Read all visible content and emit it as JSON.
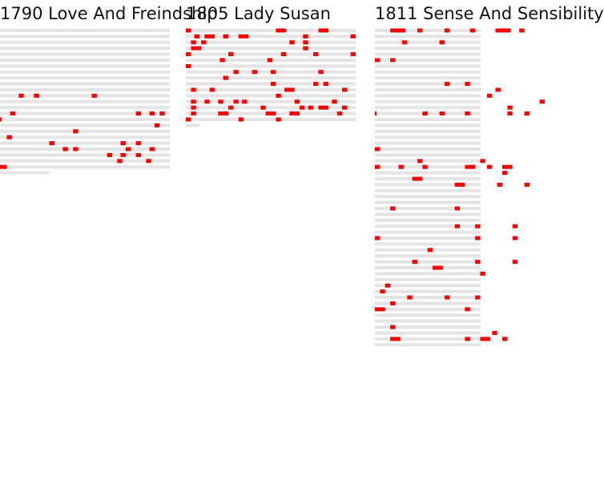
{
  "colors": {
    "line": "#e4e4e4",
    "mark": "#ff0000",
    "text": "#111111"
  },
  "chart_data": [
    {
      "type": "heatmap",
      "title": "1790 Love And Freindship",
      "rows": [
        {
          "len": 1.0,
          "marks": []
        },
        {
          "len": 1.0,
          "marks": []
        },
        {
          "len": 1.0,
          "marks": []
        },
        {
          "len": 1.0,
          "marks": []
        },
        {
          "len": 1.0,
          "marks": []
        },
        {
          "len": 1.0,
          "marks": []
        },
        {
          "len": 1.0,
          "marks": []
        },
        {
          "len": 1.0,
          "marks": []
        },
        {
          "len": 1.0,
          "marks": []
        },
        {
          "len": 1.0,
          "marks": []
        },
        {
          "len": 1.0,
          "marks": []
        },
        {
          "len": 1.0,
          "marks": [
            {
              "x": 0.11,
              "w": 0.03
            },
            {
              "x": 0.2,
              "w": 0.03
            },
            {
              "x": 0.54,
              "w": 0.03
            }
          ]
        },
        {
          "len": 1.0,
          "marks": []
        },
        {
          "len": 1.0,
          "marks": []
        },
        {
          "len": 1.0,
          "marks": [
            {
              "x": 0.06,
              "w": 0.03
            },
            {
              "x": 0.8,
              "w": 0.03
            },
            {
              "x": 0.88,
              "w": 0.03
            },
            {
              "x": 0.94,
              "w": 0.03
            }
          ]
        },
        {
          "len": 1.0,
          "marks": [
            {
              "x": 0.0,
              "w": 0.01
            }
          ]
        },
        {
          "len": 1.0,
          "marks": [
            {
              "x": 0.91,
              "w": 0.03
            }
          ]
        },
        {
          "len": 1.0,
          "marks": [
            {
              "x": 0.43,
              "w": 0.03
            }
          ]
        },
        {
          "len": 1.0,
          "marks": [
            {
              "x": 0.04,
              "w": 0.03
            }
          ]
        },
        {
          "len": 1.0,
          "marks": [
            {
              "x": 0.29,
              "w": 0.03
            },
            {
              "x": 0.71,
              "w": 0.03
            },
            {
              "x": 0.8,
              "w": 0.03
            }
          ]
        },
        {
          "len": 1.0,
          "marks": [
            {
              "x": 0.37,
              "w": 0.03
            },
            {
              "x": 0.43,
              "w": 0.03
            },
            {
              "x": 0.74,
              "w": 0.03
            },
            {
              "x": 0.88,
              "w": 0.03
            }
          ]
        },
        {
          "len": 1.0,
          "marks": [
            {
              "x": 0.63,
              "w": 0.03
            },
            {
              "x": 0.71,
              "w": 0.03
            },
            {
              "x": 0.8,
              "w": 0.03
            }
          ]
        },
        {
          "len": 1.0,
          "marks": [
            {
              "x": 0.69,
              "w": 0.03
            },
            {
              "x": 0.86,
              "w": 0.03
            }
          ]
        },
        {
          "len": 1.0,
          "marks": [
            {
              "x": 0.0,
              "w": 0.04
            }
          ]
        },
        {
          "len": 0.29,
          "marks": []
        }
      ]
    },
    {
      "type": "heatmap",
      "title": "1805 Lady Susan",
      "rows": [
        {
          "len": 1.0,
          "marks": [
            {
              "x": 0.0,
              "w": 0.03
            },
            {
              "x": 0.53,
              "w": 0.06
            },
            {
              "x": 0.78,
              "w": 0.06
            }
          ]
        },
        {
          "len": 1.0,
          "marks": [
            {
              "x": 0.05,
              "w": 0.03
            },
            {
              "x": 0.11,
              "w": 0.06
            },
            {
              "x": 0.22,
              "w": 0.03
            },
            {
              "x": 0.31,
              "w": 0.06
            },
            {
              "x": 0.69,
              "w": 0.03
            },
            {
              "x": 0.97,
              "w": 0.03
            }
          ]
        },
        {
          "len": 1.0,
          "marks": [
            {
              "x": 0.03,
              "w": 0.03
            },
            {
              "x": 0.09,
              "w": 0.03
            },
            {
              "x": 0.61,
              "w": 0.03
            },
            {
              "x": 0.69,
              "w": 0.03
            }
          ]
        },
        {
          "len": 1.0,
          "marks": [
            {
              "x": 0.03,
              "w": 0.06
            },
            {
              "x": 0.69,
              "w": 0.03
            }
          ]
        },
        {
          "len": 1.0,
          "marks": [
            {
              "x": 0.0,
              "w": 0.03
            },
            {
              "x": 0.25,
              "w": 0.03
            },
            {
              "x": 0.56,
              "w": 0.03
            },
            {
              "x": 0.75,
              "w": 0.03
            },
            {
              "x": 0.97,
              "w": 0.03
            }
          ]
        },
        {
          "len": 1.0,
          "marks": [
            {
              "x": 0.2,
              "w": 0.03
            },
            {
              "x": 0.48,
              "w": 0.03
            }
          ]
        },
        {
          "len": 1.0,
          "marks": [
            {
              "x": 0.0,
              "w": 0.03
            }
          ]
        },
        {
          "len": 1.0,
          "marks": [
            {
              "x": 0.28,
              "w": 0.03
            },
            {
              "x": 0.39,
              "w": 0.03
            },
            {
              "x": 0.5,
              "w": 0.03
            },
            {
              "x": 0.78,
              "w": 0.03
            }
          ]
        },
        {
          "len": 1.0,
          "marks": [
            {
              "x": 0.22,
              "w": 0.03
            }
          ]
        },
        {
          "len": 1.0,
          "marks": [
            {
              "x": 0.5,
              "w": 0.03
            },
            {
              "x": 0.75,
              "w": 0.03
            },
            {
              "x": 0.81,
              "w": 0.03
            }
          ]
        },
        {
          "len": 1.0,
          "marks": [
            {
              "x": 0.03,
              "w": 0.03
            },
            {
              "x": 0.14,
              "w": 0.03
            },
            {
              "x": 0.58,
              "w": 0.06
            },
            {
              "x": 0.92,
              "w": 0.03
            }
          ]
        },
        {
          "len": 1.0,
          "marks": [
            {
              "x": 0.53,
              "w": 0.03
            }
          ]
        },
        {
          "len": 1.0,
          "marks": [
            {
              "x": 0.03,
              "w": 0.03
            },
            {
              "x": 0.11,
              "w": 0.03
            },
            {
              "x": 0.19,
              "w": 0.03
            },
            {
              "x": 0.28,
              "w": 0.03
            },
            {
              "x": 0.33,
              "w": 0.03
            },
            {
              "x": 0.64,
              "w": 0.03
            },
            {
              "x": 0.86,
              "w": 0.03
            }
          ]
        },
        {
          "len": 1.0,
          "marks": [
            {
              "x": 0.03,
              "w": 0.03
            },
            {
              "x": 0.25,
              "w": 0.03
            },
            {
              "x": 0.44,
              "w": 0.03
            },
            {
              "x": 0.67,
              "w": 0.03
            },
            {
              "x": 0.72,
              "w": 0.03
            },
            {
              "x": 0.78,
              "w": 0.06
            },
            {
              "x": 0.92,
              "w": 0.03
            }
          ]
        },
        {
          "len": 1.0,
          "marks": [
            {
              "x": 0.03,
              "w": 0.03
            },
            {
              "x": 0.19,
              "w": 0.06
            },
            {
              "x": 0.47,
              "w": 0.06
            },
            {
              "x": 0.61,
              "w": 0.06
            },
            {
              "x": 0.89,
              "w": 0.03
            }
          ]
        },
        {
          "len": 1.0,
          "marks": [
            {
              "x": 0.0,
              "w": 0.03
            },
            {
              "x": 0.31,
              "w": 0.03
            },
            {
              "x": 0.53,
              "w": 0.03
            }
          ]
        },
        {
          "len": 0.08,
          "marks": []
        }
      ]
    },
    {
      "type": "heatmap",
      "title": "1811 Sense And Sensibility",
      "rows": [
        {
          "len": 1.0,
          "marks": [
            {
              "x": 0.09,
              "w": 0.09
            },
            {
              "x": 0.25,
              "w": 0.03
            },
            {
              "x": 0.41,
              "w": 0.03
            },
            {
              "x": 0.56,
              "w": 0.03
            },
            {
              "x": 0.71,
              "w": 0.09
            },
            {
              "x": 0.85,
              "w": 0.03
            }
          ]
        },
        {
          "len": 1.0,
          "marks": []
        },
        {
          "len": 1.0,
          "marks": [
            {
              "x": 0.16,
              "w": 0.03
            },
            {
              "x": 0.38,
              "w": 0.03
            }
          ]
        },
        {
          "len": 1.0,
          "marks": []
        },
        {
          "len": 1.0,
          "marks": []
        },
        {
          "len": 1.0,
          "marks": [
            {
              "x": 0.0,
              "w": 0.03
            },
            {
              "x": 0.09,
              "w": 0.03
            }
          ]
        },
        {
          "len": 1.0,
          "marks": []
        },
        {
          "len": 1.0,
          "marks": []
        },
        {
          "len": 1.0,
          "marks": []
        },
        {
          "len": 1.0,
          "marks": [
            {
              "x": 0.41,
              "w": 0.03
            },
            {
              "x": 0.53,
              "w": 0.03
            }
          ]
        },
        {
          "len": 1.0,
          "marks": [
            {
              "x": 0.71,
              "w": 0.03
            }
          ]
        },
        {
          "len": 1.0,
          "marks": [
            {
              "x": 0.66,
              "w": 0.03
            }
          ]
        },
        {
          "len": 1.0,
          "marks": [
            {
              "x": 0.97,
              "w": 0.03
            }
          ]
        },
        {
          "len": 1.0,
          "marks": [
            {
              "x": 0.78,
              "w": 0.03
            }
          ]
        },
        {
          "len": 1.0,
          "marks": [
            {
              "x": 0.0,
              "w": 0.01
            },
            {
              "x": 0.28,
              "w": 0.03
            },
            {
              "x": 0.38,
              "w": 0.03
            },
            {
              "x": 0.53,
              "w": 0.03
            },
            {
              "x": 0.78,
              "w": 0.03
            },
            {
              "x": 0.88,
              "w": 0.03
            }
          ]
        },
        {
          "len": 1.0,
          "marks": []
        },
        {
          "len": 1.0,
          "marks": []
        },
        {
          "len": 1.0,
          "marks": []
        },
        {
          "len": 1.0,
          "marks": []
        },
        {
          "len": 1.0,
          "marks": []
        },
        {
          "len": 1.0,
          "marks": [
            {
              "x": 0.0,
              "w": 0.03
            }
          ]
        },
        {
          "len": 1.0,
          "marks": []
        },
        {
          "len": 1.0,
          "marks": [
            {
              "x": 0.25,
              "w": 0.03
            },
            {
              "x": 0.62,
              "w": 0.03
            }
          ]
        },
        {
          "len": 1.0,
          "marks": [
            {
              "x": 0.0,
              "w": 0.03
            },
            {
              "x": 0.14,
              "w": 0.03
            },
            {
              "x": 0.28,
              "w": 0.03
            },
            {
              "x": 0.53,
              "w": 0.06
            },
            {
              "x": 0.66,
              "w": 0.03
            },
            {
              "x": 0.75,
              "w": 0.06
            }
          ]
        },
        {
          "len": 1.0,
          "marks": [
            {
              "x": 0.75,
              "w": 0.03
            }
          ]
        },
        {
          "len": 1.0,
          "marks": [
            {
              "x": 0.22,
              "w": 0.06
            }
          ]
        },
        {
          "len": 1.0,
          "marks": [
            {
              "x": 0.47,
              "w": 0.06
            },
            {
              "x": 0.72,
              "w": 0.03
            },
            {
              "x": 0.88,
              "w": 0.03
            }
          ]
        },
        {
          "len": 1.0,
          "marks": []
        },
        {
          "len": 1.0,
          "marks": []
        },
        {
          "len": 1.0,
          "marks": []
        },
        {
          "len": 1.0,
          "marks": [
            {
              "x": 0.09,
              "w": 0.03
            },
            {
              "x": 0.47,
              "w": 0.03
            }
          ]
        },
        {
          "len": 1.0,
          "marks": []
        },
        {
          "len": 1.0,
          "marks": []
        },
        {
          "len": 1.0,
          "marks": [
            {
              "x": 0.47,
              "w": 0.03
            },
            {
              "x": 0.59,
              "w": 0.03
            },
            {
              "x": 0.81,
              "w": 0.03
            }
          ]
        },
        {
          "len": 1.0,
          "marks": []
        },
        {
          "len": 1.0,
          "marks": [
            {
              "x": 0.0,
              "w": 0.03
            },
            {
              "x": 0.59,
              "w": 0.03
            },
            {
              "x": 0.81,
              "w": 0.03
            }
          ]
        },
        {
          "len": 1.0,
          "marks": []
        },
        {
          "len": 1.0,
          "marks": [
            {
              "x": 0.31,
              "w": 0.03
            }
          ]
        },
        {
          "len": 1.0,
          "marks": []
        },
        {
          "len": 1.0,
          "marks": [
            {
              "x": 0.22,
              "w": 0.03
            },
            {
              "x": 0.59,
              "w": 0.03
            },
            {
              "x": 0.81,
              "w": 0.03
            }
          ]
        },
        {
          "len": 1.0,
          "marks": [
            {
              "x": 0.34,
              "w": 0.06
            }
          ]
        },
        {
          "len": 1.0,
          "marks": [
            {
              "x": 0.62,
              "w": 0.03
            }
          ]
        },
        {
          "len": 1.0,
          "marks": []
        },
        {
          "len": 1.0,
          "marks": [
            {
              "x": 0.06,
              "w": 0.03
            }
          ]
        },
        {
          "len": 1.0,
          "marks": [
            {
              "x": 0.03,
              "w": 0.03
            }
          ]
        },
        {
          "len": 1.0,
          "marks": [
            {
              "x": 0.19,
              "w": 0.03
            },
            {
              "x": 0.41,
              "w": 0.03
            },
            {
              "x": 0.59,
              "w": 0.03
            }
          ]
        },
        {
          "len": 1.0,
          "marks": [
            {
              "x": 0.09,
              "w": 0.03
            }
          ]
        },
        {
          "len": 1.0,
          "marks": [
            {
              "x": 0.0,
              "w": 0.06
            },
            {
              "x": 0.53,
              "w": 0.03
            }
          ]
        },
        {
          "len": 1.0,
          "marks": []
        },
        {
          "len": 1.0,
          "marks": []
        },
        {
          "len": 1.0,
          "marks": [
            {
              "x": 0.09,
              "w": 0.03
            }
          ]
        },
        {
          "len": 1.0,
          "marks": [
            {
              "x": 0.69,
              "w": 0.03
            }
          ]
        },
        {
          "len": 1.0,
          "marks": [
            {
              "x": 0.09,
              "w": 0.06
            },
            {
              "x": 0.53,
              "w": 0.03
            },
            {
              "x": 0.62,
              "w": 0.06
            },
            {
              "x": 0.75,
              "w": 0.03
            }
          ]
        },
        {
          "len": 1.0,
          "marks": []
        }
      ]
    }
  ]
}
